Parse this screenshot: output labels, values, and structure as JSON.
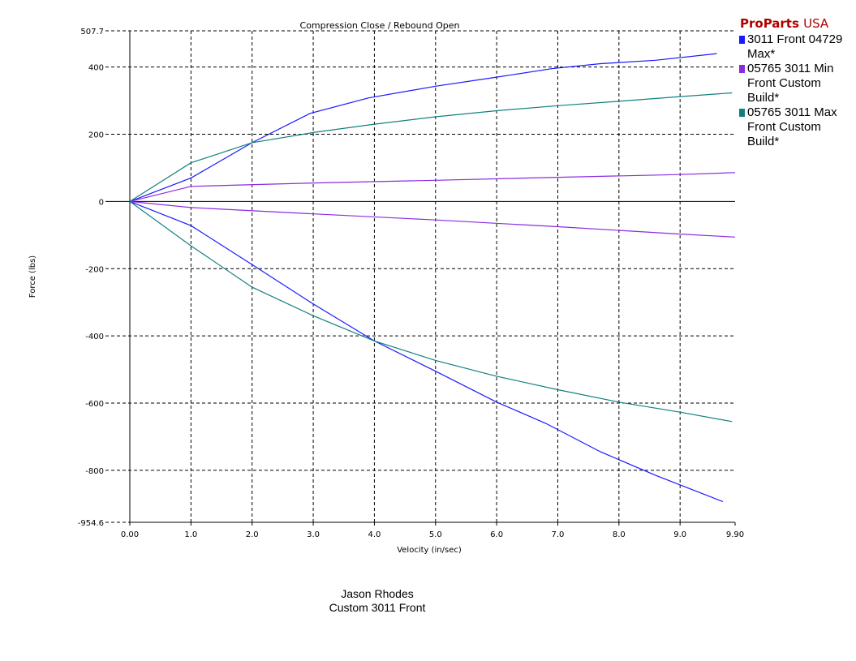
{
  "brand": {
    "name": "ProParts",
    "suffix": "USA"
  },
  "footer": {
    "line1": "Jason Rhodes",
    "line2": "Custom 3011 Front"
  },
  "chart_data": {
    "type": "line",
    "title": "Compression Close / Rebound Open",
    "xlabel": "Velocity (in/sec)",
    "ylabel": "Force (lbs)",
    "xlim": [
      0,
      9.9
    ],
    "ylim": [
      -954.6,
      507.7
    ],
    "x_ticks": [
      {
        "v": 0,
        "label": "0.00"
      },
      {
        "v": 1,
        "label": "1.0"
      },
      {
        "v": 2,
        "label": "2.0"
      },
      {
        "v": 3,
        "label": "3.0"
      },
      {
        "v": 4,
        "label": "4.0"
      },
      {
        "v": 5,
        "label": "5.0"
      },
      {
        "v": 6,
        "label": "6.0"
      },
      {
        "v": 7,
        "label": "7.0"
      },
      {
        "v": 8,
        "label": "8.0"
      },
      {
        "v": 9,
        "label": "9.0"
      },
      {
        "v": 9.9,
        "label": "9.90"
      }
    ],
    "y_ticks": [
      {
        "v": 507.7,
        "label": "507.7"
      },
      {
        "v": 400,
        "label": "400"
      },
      {
        "v": 200,
        "label": "200"
      },
      {
        "v": 0,
        "label": "0"
      },
      {
        "v": -200,
        "label": "-200"
      },
      {
        "v": -400,
        "label": "-400"
      },
      {
        "v": -600,
        "label": "-600"
      },
      {
        "v": -800,
        "label": "-800"
      },
      {
        "v": -954.6,
        "label": "-954.6"
      }
    ],
    "grid": true,
    "legend": "right",
    "series": [
      {
        "name": "3011 Front 04729 Max*",
        "color": "#1a1aff",
        "compression": [
          [
            0,
            0
          ],
          [
            1,
            70
          ],
          [
            2,
            175
          ],
          [
            2.95,
            262
          ],
          [
            3.9,
            308
          ],
          [
            5,
            343
          ],
          [
            6,
            370
          ],
          [
            6.9,
            395
          ],
          [
            7.7,
            410
          ],
          [
            8.6,
            420
          ],
          [
            9.6,
            440
          ]
        ],
        "rebound": [
          [
            0,
            0
          ],
          [
            1,
            -72
          ],
          [
            2,
            -188
          ],
          [
            3,
            -305
          ],
          [
            4,
            -415
          ],
          [
            5,
            -505
          ],
          [
            6,
            -597
          ],
          [
            6.8,
            -660
          ],
          [
            7.7,
            -745
          ],
          [
            8.6,
            -815
          ],
          [
            9.7,
            -893
          ]
        ]
      },
      {
        "name": "05765 3011 Min Front Custom Build*",
        "color": "#8a2be2",
        "compression": [
          [
            0,
            0
          ],
          [
            1,
            45
          ],
          [
            3,
            55
          ],
          [
            5,
            63
          ],
          [
            7,
            72
          ],
          [
            9,
            80
          ],
          [
            9.9,
            86
          ]
        ],
        "rebound": [
          [
            0,
            0
          ],
          [
            1,
            -18
          ],
          [
            3,
            -37
          ],
          [
            5,
            -55
          ],
          [
            7,
            -75
          ],
          [
            9,
            -97
          ],
          [
            9.9,
            -106
          ]
        ]
      },
      {
        "name": "05765 3011 Max Front Custom Build*",
        "color": "#138080",
        "compression": [
          [
            0,
            0
          ],
          [
            1,
            115
          ],
          [
            2,
            175
          ],
          [
            3,
            205
          ],
          [
            4,
            230
          ],
          [
            5,
            252
          ],
          [
            6,
            270
          ],
          [
            7,
            285
          ],
          [
            8,
            298
          ],
          [
            9,
            312
          ],
          [
            9.85,
            323
          ]
        ],
        "rebound": [
          [
            0,
            0
          ],
          [
            1,
            -132
          ],
          [
            2,
            -255
          ],
          [
            3,
            -340
          ],
          [
            4,
            -415
          ],
          [
            5,
            -473
          ],
          [
            6,
            -520
          ],
          [
            7,
            -560
          ],
          [
            8,
            -597
          ],
          [
            9,
            -627
          ],
          [
            9.85,
            -655
          ]
        ]
      }
    ]
  }
}
